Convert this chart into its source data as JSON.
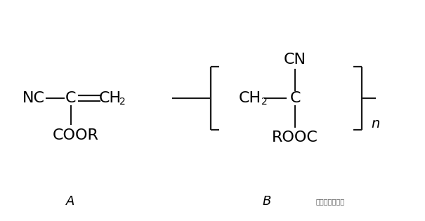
{
  "bg_color": "#ffffff",
  "text_color": "#000000",
  "label_A": "A",
  "label_B": "B",
  "watermark": "一起学统计工具",
  "line_color": "#1a1a1a",
  "line_width": 1.6,
  "font_size_main": 14,
  "font_size_sub": 9,
  "font_size_label": 13
}
